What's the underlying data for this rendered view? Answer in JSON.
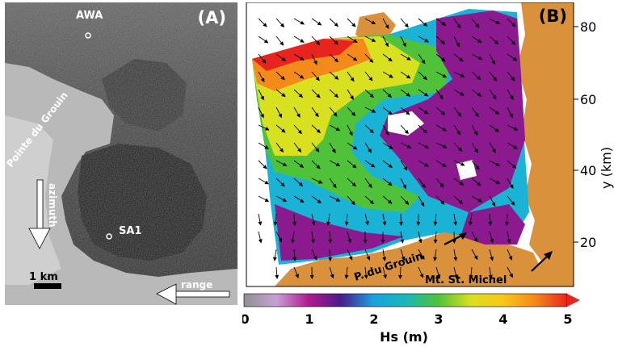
{
  "panel_a": {
    "label": "(A)",
    "station_awa": "AWA",
    "station_sa1": "SA1",
    "place_label": "Pointe du Grouin",
    "azimuth_label": "azimuth",
    "range_label": "range",
    "scale_label": "1 km"
  },
  "panel_b": {
    "label": "(B)",
    "y_axis_label": "y (km)",
    "y_ticks": [
      "80",
      "60",
      "40",
      "20"
    ],
    "place_grouin": "P. du Grouin",
    "place_michel": "Mt. St. Michel",
    "colorbar": {
      "title": "Hs (m)",
      "ticks": [
        "0",
        "1",
        "2",
        "3",
        "4",
        "5"
      ],
      "min": 0,
      "max": 5
    }
  },
  "colors": {
    "land": "#d9913b",
    "sea_low": "#8b1a8f",
    "sea_mid": "#1ab3d6",
    "sea_high": "#e8241e"
  }
}
